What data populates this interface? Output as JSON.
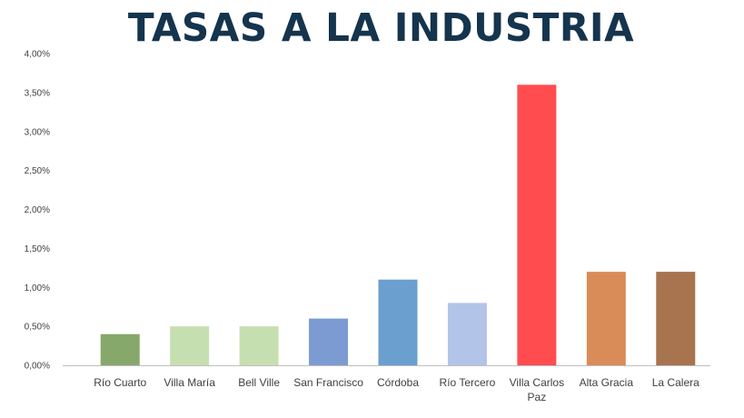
{
  "chart_data": {
    "type": "bar",
    "title": "TASAS A LA INDUSTRIA",
    "xlabel": "",
    "ylabel": "",
    "ylim": [
      0,
      4.0
    ],
    "y_ticks": [
      0,
      0.5,
      1.0,
      1.5,
      2.0,
      2.5,
      3.0,
      3.5,
      4.0
    ],
    "y_tick_labels": [
      "0,00%",
      "0,50%",
      "1,00%",
      "1,50%",
      "2,00%",
      "2,50%",
      "3,00%",
      "3,50%",
      "4,00%"
    ],
    "grid": false,
    "legend": "none",
    "categories": [
      "Río Cuarto",
      "Villa María",
      "Bell Ville",
      "San Francisco",
      "Córdoba",
      "Río Tercero",
      "Villa Carlos Paz",
      "Alta Gracia",
      "La Calera"
    ],
    "values": [
      0.4,
      0.5,
      0.5,
      0.6,
      1.1,
      0.8,
      3.6,
      1.2,
      1.2
    ],
    "unit": "%",
    "colors": [
      "#86a86a",
      "#c6dfb0",
      "#c6dfb0",
      "#7d9bd3",
      "#6a9fcf",
      "#b2c4e7",
      "#ff4d4f",
      "#d98c58",
      "#a8734f"
    ],
    "axis_color": "#bfbfbf"
  }
}
